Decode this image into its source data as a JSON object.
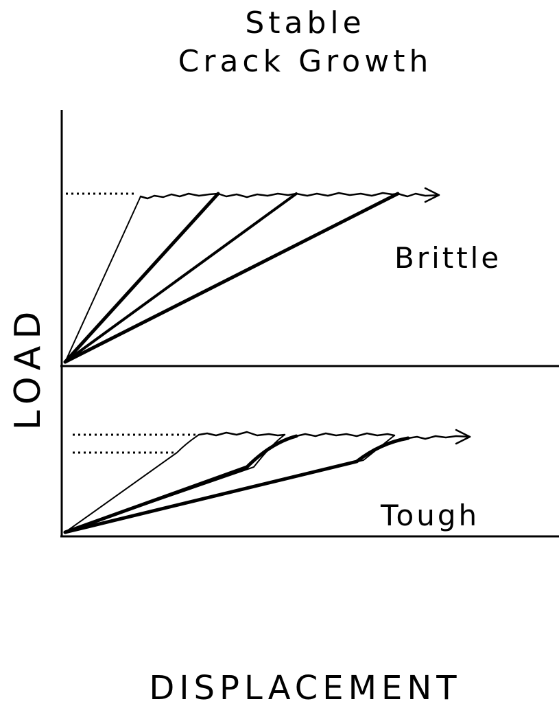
{
  "title": {
    "line1": "Stable",
    "line2": "Crack Growth"
  },
  "y_axis_label": "LOAD",
  "x_axis_label": "DISPLACEMENT",
  "panels": [
    {
      "label": "Brittle"
    },
    {
      "label": "Tough"
    }
  ]
}
